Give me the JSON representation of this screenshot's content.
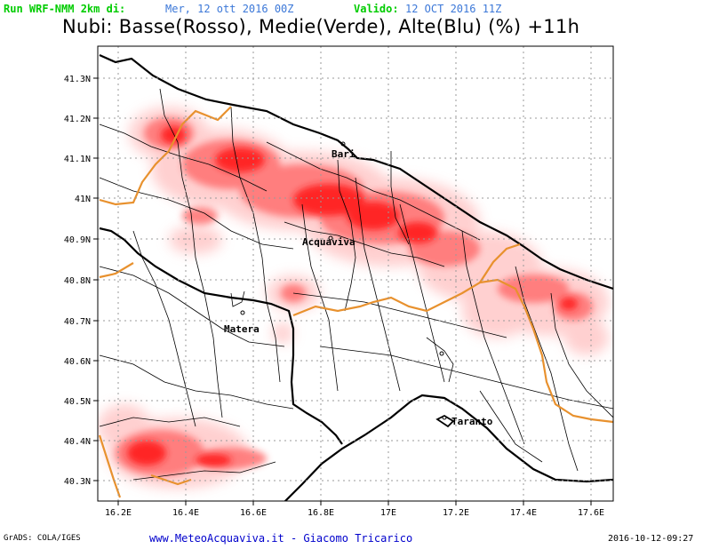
{
  "header": {
    "run_label": "Run WRF-NMM 2km di:",
    "run_date": "Mer, 12 ott 2016 00Z",
    "valid_label": "Valido:",
    "valid_date": "12 OCT 2016 11Z",
    "title": "Nubi: Basse(Rosso), Medie(Verde), Alte(Blu) (%) +11h"
  },
  "colors": {
    "run_label": "#00cc00",
    "run_date": "#3c78d8",
    "valid_label": "#00cc00",
    "valid_date": "#3c78d8",
    "cloud_low": "#ff0000",
    "region_border": "#e8912e",
    "coast": "#000000",
    "grid": "#999999",
    "footer_link": "#0000cc"
  },
  "map": {
    "y_ticks": [
      "41.3N",
      "41.2N",
      "41.1N",
      "41N",
      "40.9N",
      "40.8N",
      "40.7N",
      "40.6N",
      "40.5N",
      "40.4N",
      "40.3N"
    ],
    "x_ticks": [
      "16.2E",
      "16.4E",
      "16.6E",
      "16.8E",
      "17E",
      "17.2E",
      "17.4E",
      "17.6E"
    ],
    "cities": {
      "bari": "Bari",
      "acquaviva": "Acquaviva",
      "matera": "Matera",
      "taranto": "Taranto"
    }
  },
  "footer": {
    "grads": "GrADS: COLA/IGES",
    "credit": "www.MeteoAcquaviva.it  -  Giacomo Tricarico",
    "timestamp": "2016-10-12-09:27"
  }
}
